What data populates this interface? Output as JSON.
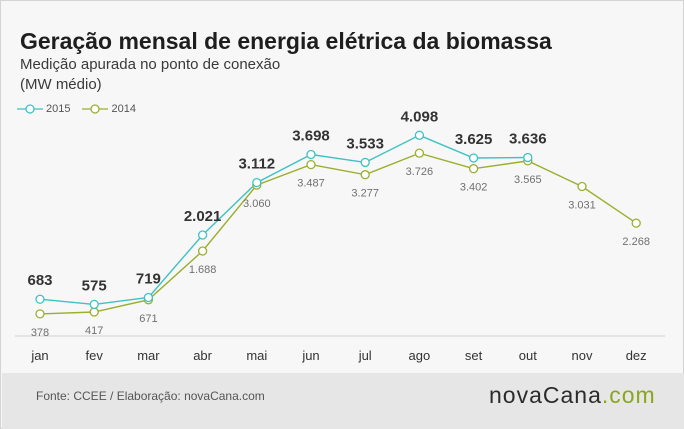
{
  "header": {
    "title": "Geração mensal de energia elétrica da biomassa",
    "subtitle": "Medição apurada no ponto de conexão",
    "units": "(MW médio)"
  },
  "footer": {
    "source": "Fonte: CCEE / Elaboração: novaCana.com",
    "brand_main": "novaCana",
    "brand_suffix": ".com"
  },
  "colors": {
    "series_2015": "#3ec2c4",
    "series_2014": "#9cae2e",
    "grid": "#d0d0d0"
  },
  "chart_data": {
    "type": "line",
    "title": "Geração mensal de energia elétrica da biomassa",
    "subtitle": "Medição apurada no ponto de conexão",
    "ylabel": "(MW médio)",
    "categories": [
      "jan",
      "fev",
      "mar",
      "abr",
      "mai",
      "jun",
      "jul",
      "ago",
      "set",
      "out",
      "nov",
      "dez"
    ],
    "ylim": [
      0,
      4400
    ],
    "grid": false,
    "legend": "top-left",
    "series": [
      {
        "name": "2015",
        "values": [
          683,
          575,
          719,
          2021,
          3112,
          3698,
          3533,
          4098,
          3625,
          3636,
          null,
          null
        ],
        "labels": [
          "683",
          "575",
          "719",
          "2.021",
          "3.112",
          "3.698",
          "3.533",
          "4.098",
          "3.625",
          "3.636",
          "",
          ""
        ]
      },
      {
        "name": "2014",
        "values": [
          378,
          417,
          671,
          1688,
          3060,
          3487,
          3277,
          3726,
          3402,
          3565,
          3031,
          2268
        ],
        "labels": [
          "378",
          "417",
          "671",
          "1.688",
          "3.060",
          "3.487",
          "3.277",
          "3.726",
          "3.402",
          "3.565",
          "3.031",
          "2.268"
        ]
      }
    ]
  }
}
